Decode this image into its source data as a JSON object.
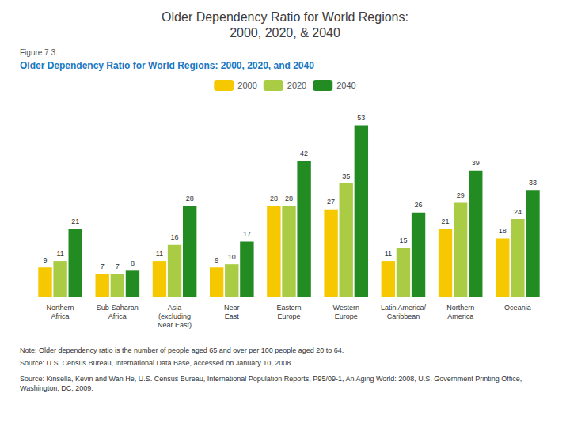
{
  "chart_data": {
    "type": "bar",
    "title": "Older Dependency Ratio for World Regions:\n2000, 2020, & 2040",
    "subtitle": "Older Dependency Ratio for World Regions: 2000, 2020, and 2040",
    "annotations": [
      "Figure 7 3.",
      "Note: Older dependency ratio is the number of people aged 65 and over per 100 people aged 20 to 64.",
      "Source: U.S. Census Bureau, International Data Base, accessed on January 10, 2008.",
      "Source: Kinsella, Kevin and Wan He, U.S. Census Bureau, International Population Reports, P95/09-1, An Aging World: 2008, U.S. Government Printing Office, Washington, DC, 2009."
    ],
    "categories": [
      "Northern\nAfrica",
      "Sub-Saharan\nAfrica",
      "Asia\n(excluding\nNear East)",
      "Near\nEast",
      "Eastern\nEurope",
      "Western\nEurope",
      "Latin America/\nCaribbean",
      "Northern\nAmerica",
      "Oceania"
    ],
    "series": [
      {
        "name": "2000",
        "color": "#F5C800",
        "values": [
          9,
          7,
          11,
          9,
          28,
          27,
          11,
          21,
          18
        ]
      },
      {
        "name": "2020",
        "color": "#AACC44",
        "values": [
          11,
          7,
          16,
          10,
          28,
          35,
          15,
          29,
          24
        ]
      },
      {
        "name": "2040",
        "color": "#228B22",
        "values": [
          21,
          8,
          28,
          17,
          42,
          53,
          26,
          39,
          33
        ]
      }
    ],
    "ylim": [
      0,
      60
    ],
    "grid": false,
    "legend": "top",
    "data_labels": true,
    "tick_labels": "x"
  }
}
